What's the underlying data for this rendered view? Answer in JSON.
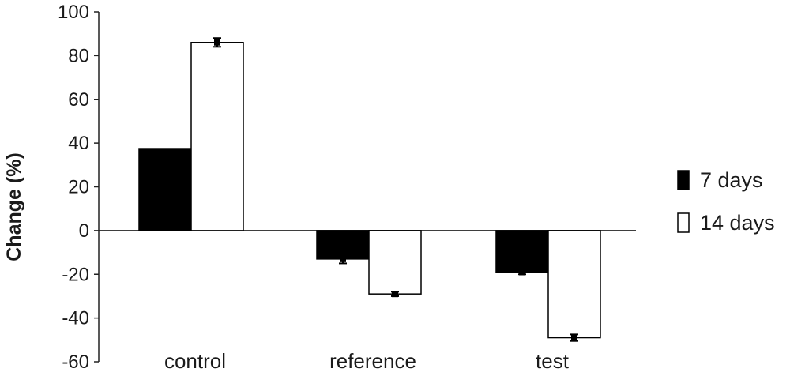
{
  "chart_data": {
    "type": "bar",
    "categories": [
      "control",
      "reference",
      "test"
    ],
    "series": [
      {
        "name": "7 days",
        "values": [
          37.5,
          -13,
          -19
        ],
        "errors": [
          0,
          2,
          1
        ],
        "color": "#000000"
      },
      {
        "name": "14 days",
        "values": [
          86,
          -29,
          -49
        ],
        "errors": [
          2,
          1,
          1.5
        ],
        "color": "#ffffff"
      }
    ],
    "ylabel": "Change (%)",
    "ylim": [
      -60,
      100
    ],
    "yticks": [
      100,
      80,
      60,
      40,
      20,
      0,
      -20,
      -40,
      -60
    ],
    "legend": "right",
    "grid": false
  }
}
